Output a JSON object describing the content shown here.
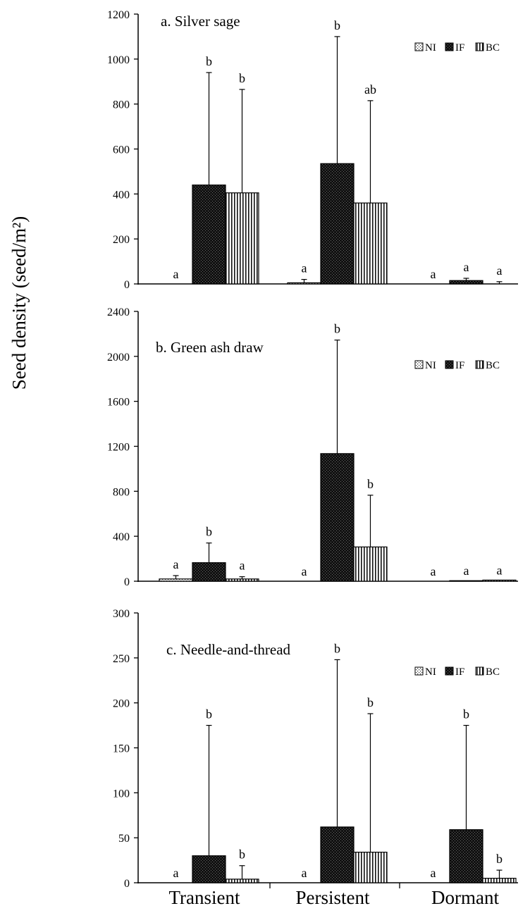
{
  "y_axis_label": "Seed density (seed/m²)",
  "x_categories": [
    "Transient",
    "Persistent",
    "Dormant"
  ],
  "chart_data": [
    {
      "type": "bar",
      "title": "a.  Silver sage",
      "ylabel": "Seed density (seed/m²)",
      "categories": [
        "Transient",
        "Persistent",
        "Dormant"
      ],
      "ylim": [
        0,
        1200
      ],
      "yticks": [
        0,
        200,
        400,
        600,
        800,
        1000,
        1200
      ],
      "legend_position": "top-right",
      "series": [
        {
          "name": "NI",
          "values": [
            0,
            5,
            0
          ],
          "errors": [
            0,
            15,
            0
          ],
          "letters": [
            "a",
            "a",
            "a"
          ]
        },
        {
          "name": "IF",
          "values": [
            440,
            535,
            15
          ],
          "errors": [
            500,
            565,
            10
          ],
          "letters": [
            "b",
            "b",
            "a"
          ]
        },
        {
          "name": "BC",
          "values": [
            405,
            360,
            0
          ],
          "errors": [
            460,
            455,
            10
          ],
          "letters": [
            "b",
            "ab",
            "a"
          ]
        }
      ]
    },
    {
      "type": "bar",
      "title": "b. Green ash draw",
      "ylabel": "Seed density (seed/m²)",
      "categories": [
        "Transient",
        "Persistent",
        "Dormant"
      ],
      "ylim": [
        0,
        2400
      ],
      "yticks": [
        0,
        400,
        800,
        1200,
        1600,
        2000,
        2400
      ],
      "legend_position": "top-right",
      "series": [
        {
          "name": "NI",
          "values": [
            20,
            0,
            0
          ],
          "errors": [
            30,
            0,
            0
          ],
          "letters": [
            "a",
            "a",
            "a"
          ]
        },
        {
          "name": "IF",
          "values": [
            165,
            1135,
            5
          ],
          "errors": [
            175,
            1010,
            0
          ],
          "letters": [
            "b",
            "b",
            "a"
          ]
        },
        {
          "name": "BC",
          "values": [
            20,
            305,
            10
          ],
          "errors": [
            20,
            460,
            0
          ],
          "letters": [
            "a",
            "b",
            "a"
          ]
        }
      ]
    },
    {
      "type": "bar",
      "title": "c. Needle-and-thread",
      "ylabel": "Seed density (seed/m²)",
      "categories": [
        "Transient",
        "Persistent",
        "Dormant"
      ],
      "ylim": [
        0,
        300
      ],
      "yticks": [
        0,
        50,
        100,
        150,
        200,
        250,
        300
      ],
      "legend_position": "top-right",
      "series": [
        {
          "name": "NI",
          "values": [
            0,
            0,
            0
          ],
          "errors": [
            0,
            0,
            0
          ],
          "letters": [
            "a",
            "a",
            "a"
          ]
        },
        {
          "name": "IF",
          "values": [
            30,
            62,
            59
          ],
          "errors": [
            145,
            186,
            116
          ],
          "letters": [
            "b",
            "b",
            "b"
          ]
        },
        {
          "name": "BC",
          "values": [
            4,
            34,
            5
          ],
          "errors": [
            15,
            154,
            9
          ],
          "letters": [
            "b",
            "b",
            "b"
          ]
        }
      ]
    }
  ]
}
